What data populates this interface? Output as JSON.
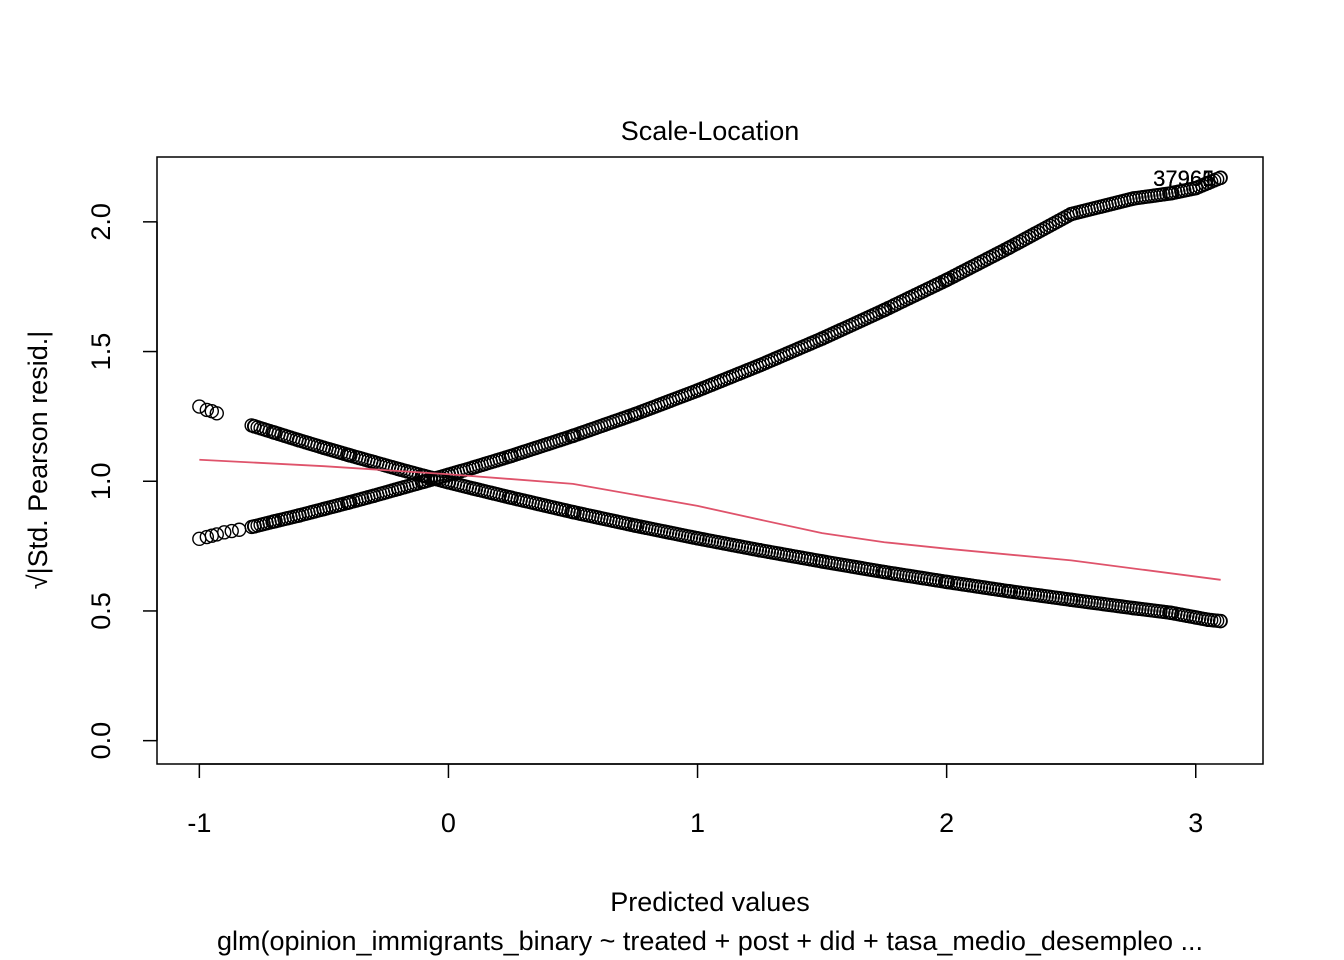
{
  "chart_data": {
    "type": "scatter",
    "title": "Scale-Location",
    "xlabel": "Predicted values",
    "subtitle": "glm(opinion_immigrants_binary ~ treated + post + did + tasa_medio_desempleo ...",
    "ylabel": "√|Std. Pearson resid.|",
    "xlim": [
      -1.17,
      3.27
    ],
    "ylim": [
      -0.09,
      2.25
    ],
    "xticks": [
      -1,
      0,
      1,
      2,
      3
    ],
    "yticks": [
      0.0,
      0.5,
      1.0,
      1.5,
      2.0
    ],
    "xtick_labels": [
      "-1",
      "0",
      "1",
      "2",
      "3"
    ],
    "ytick_labels": [
      "0.0",
      "0.5",
      "1.0",
      "1.5",
      "2.0"
    ],
    "grid": false,
    "legend": "none",
    "point_color": "#000000",
    "smooth_color": "#DF536B",
    "series": [
      {
        "values_x": [
          -1.0,
          -0.97,
          -0.95,
          -0.93,
          -0.9,
          -0.87,
          -0.84,
          -0.78,
          -0.7,
          -0.6,
          -0.5,
          -0.4,
          -0.3,
          -0.2,
          -0.1,
          0.0,
          0.1,
          0.25,
          0.5,
          0.75,
          1.0,
          1.25,
          1.5,
          1.75,
          2.0,
          2.25,
          2.5,
          2.75,
          2.9,
          3.0,
          3.05,
          3.1
        ],
        "values_y": [
          0.778,
          0.785,
          0.79,
          0.795,
          0.803,
          0.808,
          0.813,
          0.826,
          0.845,
          0.868,
          0.893,
          0.918,
          0.944,
          0.971,
          0.998,
          1.025,
          1.053,
          1.097,
          1.175,
          1.259,
          1.35,
          1.447,
          1.55,
          1.66,
          1.776,
          1.9,
          2.03,
          2.09,
          2.11,
          2.13,
          2.15,
          2.17
        ]
      },
      {
        "values_x": [
          -1.0,
          -0.97,
          -0.95,
          -0.93,
          -0.78,
          -0.7,
          -0.6,
          -0.5,
          -0.4,
          -0.3,
          -0.2,
          -0.1,
          0.0,
          0.1,
          0.25,
          0.5,
          0.75,
          1.0,
          1.25,
          1.5,
          1.75,
          2.0,
          2.25,
          2.5,
          2.75,
          2.9,
          3.0,
          3.05,
          3.1
        ],
        "values_y": [
          1.288,
          1.275,
          1.27,
          1.262,
          1.212,
          1.188,
          1.158,
          1.129,
          1.101,
          1.074,
          1.047,
          1.021,
          0.996,
          0.972,
          0.937,
          0.881,
          0.829,
          0.78,
          0.734,
          0.691,
          0.65,
          0.612,
          0.576,
          0.543,
          0.511,
          0.493,
          0.475,
          0.466,
          0.461
        ]
      }
    ],
    "smooth": {
      "x": [
        -1.0,
        -0.5,
        0.0,
        0.5,
        1.0,
        1.25,
        1.5,
        1.75,
        2.0,
        2.5,
        3.1
      ],
      "y": [
        1.083,
        1.058,
        1.027,
        0.99,
        0.905,
        0.852,
        0.8,
        0.765,
        0.74,
        0.695,
        0.62
      ]
    },
    "annotations": [
      {
        "text": "37965",
        "x": 3.0,
        "y": 2.17
      },
      {
        "text": "37966",
        "x": 3.0,
        "y": 2.17
      },
      {
        "text": "37961",
        "x": 3.0,
        "y": 2.17
      }
    ]
  }
}
